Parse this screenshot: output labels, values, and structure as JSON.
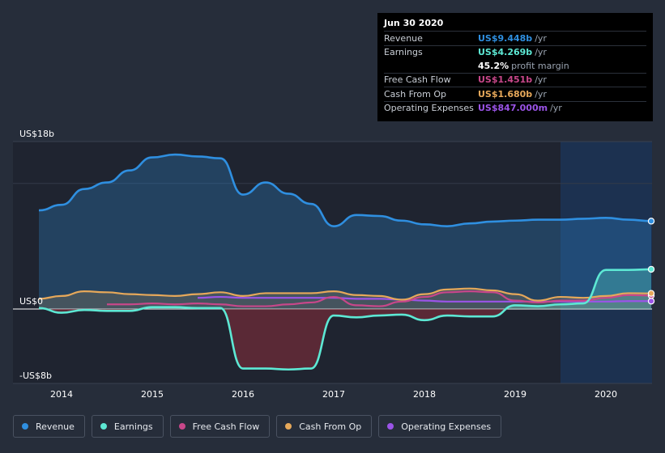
{
  "chart_data": {
    "type": "line",
    "title": "",
    "xlabel": "",
    "ylabel": "",
    "ylim": [
      -8,
      18
    ],
    "y_ticks": [
      {
        "value": 18,
        "label": "US$18b"
      },
      {
        "value": 0,
        "label": "US$0"
      },
      {
        "value": -8,
        "label": "-US$8b"
      }
    ],
    "x_ticks": [
      {
        "value": 2014,
        "label": "2014"
      },
      {
        "value": 2015,
        "label": "2015"
      },
      {
        "value": 2016,
        "label": "2016"
      },
      {
        "value": 2017,
        "label": "2017"
      },
      {
        "value": 2018,
        "label": "2018"
      },
      {
        "value": 2019,
        "label": "2019"
      },
      {
        "value": 2020,
        "label": "2020"
      }
    ],
    "xlim": [
      2013.57,
      2020.5
    ],
    "forecast_start": 2019.5,
    "series": [
      {
        "name": "Revenue",
        "color": "#2f8fe0",
        "fill": true,
        "points": [
          [
            2013.75,
            10.6
          ],
          [
            2014.0,
            11.2
          ],
          [
            2014.25,
            12.9
          ],
          [
            2014.5,
            13.6
          ],
          [
            2014.75,
            14.9
          ],
          [
            2015.0,
            16.3
          ],
          [
            2015.25,
            16.6
          ],
          [
            2015.5,
            16.4
          ],
          [
            2015.75,
            16.2
          ],
          [
            2016.0,
            12.3
          ],
          [
            2016.25,
            13.6
          ],
          [
            2016.5,
            12.4
          ],
          [
            2016.75,
            11.3
          ],
          [
            2017.0,
            8.9
          ],
          [
            2017.25,
            10.1
          ],
          [
            2017.5,
            10.0
          ],
          [
            2017.75,
            9.5
          ],
          [
            2018.0,
            9.1
          ],
          [
            2018.25,
            8.9
          ],
          [
            2018.5,
            9.2
          ],
          [
            2018.75,
            9.4
          ],
          [
            2019.0,
            9.5
          ],
          [
            2019.25,
            9.6
          ],
          [
            2019.5,
            9.6
          ],
          [
            2019.75,
            9.7
          ],
          [
            2020.0,
            9.8
          ],
          [
            2020.25,
            9.6
          ],
          [
            2020.5,
            9.448
          ]
        ]
      },
      {
        "name": "Earnings",
        "color": "#5de8d4",
        "fill": true,
        "points": [
          [
            2013.75,
            0.1
          ],
          [
            2014.0,
            -0.4
          ],
          [
            2014.25,
            -0.1
          ],
          [
            2014.5,
            -0.2
          ],
          [
            2014.75,
            -0.2
          ],
          [
            2015.0,
            0.2
          ],
          [
            2015.25,
            0.2
          ],
          [
            2015.5,
            0.1
          ],
          [
            2015.75,
            0.1
          ],
          [
            2016.0,
            -6.4
          ],
          [
            2016.25,
            -6.4
          ],
          [
            2016.5,
            -6.5
          ],
          [
            2016.75,
            -6.4
          ],
          [
            2017.0,
            -0.7
          ],
          [
            2017.25,
            -0.9
          ],
          [
            2017.5,
            -0.7
          ],
          [
            2017.75,
            -0.6
          ],
          [
            2018.0,
            -1.2
          ],
          [
            2018.25,
            -0.7
          ],
          [
            2018.5,
            -0.8
          ],
          [
            2018.75,
            -0.8
          ],
          [
            2019.0,
            0.4
          ],
          [
            2019.25,
            0.3
          ],
          [
            2019.5,
            0.5
          ],
          [
            2019.75,
            0.6
          ],
          [
            2020.0,
            4.2
          ],
          [
            2020.25,
            4.2
          ],
          [
            2020.5,
            4.269
          ]
        ]
      },
      {
        "name": "Free Cash Flow",
        "color": "#c8478a",
        "fill": false,
        "points": [
          [
            2014.5,
            0.5
          ],
          [
            2014.75,
            0.5
          ],
          [
            2015.0,
            0.6
          ],
          [
            2015.25,
            0.5
          ],
          [
            2015.5,
            0.6
          ],
          [
            2015.75,
            0.5
          ],
          [
            2016.0,
            0.3
          ],
          [
            2016.25,
            0.3
          ],
          [
            2016.5,
            0.5
          ],
          [
            2016.75,
            0.7
          ],
          [
            2017.0,
            1.3
          ],
          [
            2017.25,
            0.4
          ],
          [
            2017.5,
            0.3
          ],
          [
            2017.75,
            0.8
          ],
          [
            2018.0,
            1.3
          ],
          [
            2018.25,
            1.8
          ],
          [
            2018.5,
            1.9
          ],
          [
            2018.75,
            1.8
          ],
          [
            2019.0,
            0.9
          ],
          [
            2019.25,
            0.7
          ],
          [
            2019.5,
            0.9
          ],
          [
            2019.75,
            0.9
          ],
          [
            2020.0,
            1.2
          ],
          [
            2020.25,
            1.5
          ],
          [
            2020.5,
            1.451
          ]
        ]
      },
      {
        "name": "Cash From Op",
        "color": "#e6a85a",
        "fill": true,
        "points": [
          [
            2013.75,
            1.1
          ],
          [
            2014.0,
            1.4
          ],
          [
            2014.25,
            1.9
          ],
          [
            2014.5,
            1.8
          ],
          [
            2014.75,
            1.6
          ],
          [
            2015.0,
            1.5
          ],
          [
            2015.25,
            1.4
          ],
          [
            2015.5,
            1.6
          ],
          [
            2015.75,
            1.8
          ],
          [
            2016.0,
            1.4
          ],
          [
            2016.25,
            1.7
          ],
          [
            2016.5,
            1.7
          ],
          [
            2016.75,
            1.7
          ],
          [
            2017.0,
            1.9
          ],
          [
            2017.25,
            1.5
          ],
          [
            2017.5,
            1.4
          ],
          [
            2017.75,
            1.0
          ],
          [
            2018.0,
            1.6
          ],
          [
            2018.25,
            2.1
          ],
          [
            2018.5,
            2.2
          ],
          [
            2018.75,
            2.0
          ],
          [
            2019.0,
            1.6
          ],
          [
            2019.25,
            0.9
          ],
          [
            2019.5,
            1.3
          ],
          [
            2019.75,
            1.2
          ],
          [
            2020.0,
            1.4
          ],
          [
            2020.25,
            1.7
          ],
          [
            2020.5,
            1.68
          ]
        ]
      },
      {
        "name": "Operating Expenses",
        "color": "#9b54e8",
        "fill": false,
        "points": [
          [
            2015.5,
            1.2
          ],
          [
            2015.75,
            1.3
          ],
          [
            2016.0,
            1.2
          ],
          [
            2016.25,
            1.2
          ],
          [
            2016.5,
            1.2
          ],
          [
            2016.75,
            1.2
          ],
          [
            2017.0,
            1.2
          ],
          [
            2017.25,
            1.1
          ],
          [
            2017.5,
            1.1
          ],
          [
            2017.75,
            1.0
          ],
          [
            2018.0,
            0.9
          ],
          [
            2018.25,
            0.8
          ],
          [
            2018.5,
            0.8
          ],
          [
            2018.75,
            0.8
          ],
          [
            2019.0,
            0.8
          ],
          [
            2019.25,
            0.8
          ],
          [
            2019.5,
            0.8
          ],
          [
            2019.75,
            0.8
          ],
          [
            2020.0,
            0.8
          ],
          [
            2020.25,
            0.85
          ],
          [
            2020.5,
            0.847
          ]
        ]
      }
    ]
  },
  "tooltip": {
    "date": "Jun 30 2020",
    "rows": [
      {
        "label": "Revenue",
        "value": "US$9.448b",
        "unit": "/yr",
        "color": "#2f8fe0"
      },
      {
        "label": "Earnings",
        "value": "US$4.269b",
        "unit": "/yr",
        "color": "#5de8d4"
      },
      {
        "label": "",
        "value": "45.2%",
        "unit": "profit margin",
        "color": "#ffffff"
      },
      {
        "label": "Free Cash Flow",
        "value": "US$1.451b",
        "unit": "/yr",
        "color": "#c8478a"
      },
      {
        "label": "Cash From Op",
        "value": "US$1.680b",
        "unit": "/yr",
        "color": "#e6a85a"
      },
      {
        "label": "Operating Expenses",
        "value": "US$847.000m",
        "unit": "/yr",
        "color": "#9b54e8"
      }
    ]
  },
  "legend": [
    {
      "label": "Revenue",
      "color": "#2f8fe0"
    },
    {
      "label": "Earnings",
      "color": "#5de8d4"
    },
    {
      "label": "Free Cash Flow",
      "color": "#c8478a"
    },
    {
      "label": "Cash From Op",
      "color": "#e6a85a"
    },
    {
      "label": "Operating Expenses",
      "color": "#9b54e8"
    }
  ]
}
